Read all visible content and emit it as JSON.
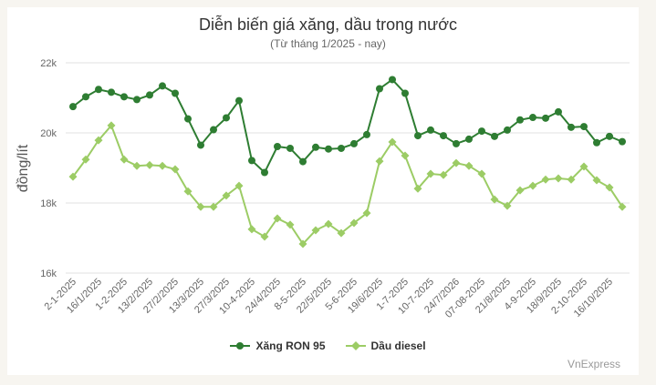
{
  "chart_data": {
    "type": "line",
    "title": "Diễn biến giá xăng, dầu trong nước",
    "subtitle": "(Từ tháng 1/2025 - nay)",
    "xlabel": "",
    "ylabel": "đồng/lít",
    "ylim": [
      16000,
      22000
    ],
    "yticks": [
      16000,
      18000,
      20000,
      22000
    ],
    "ytick_labels": [
      "16k",
      "18k",
      "20k",
      "22k"
    ],
    "grid": true,
    "legend_position": "bottom",
    "xtick_labels": [
      "2-1-2025",
      "16/1/2025",
      "1-2-2025",
      "13/2/2025",
      "27/2/2025",
      "13/3/2025",
      "27/3/2025",
      "10-4-2025",
      "24/4/2025",
      "8-5-2025",
      "22/5/2025",
      "5-6-2025",
      "19/6/2025",
      "1-7-2025",
      "10-7-2025",
      "24/7/2026",
      "07-08-2025",
      "21/8/2025",
      "4-9-2025",
      "18/9/2025",
      "2-10-2025",
      "16/10/2025"
    ],
    "point_count": 44,
    "series": [
      {
        "name": "Xăng RON 95",
        "color": "#2e7d32",
        "marker": "circle",
        "values": [
          20750,
          21030,
          21240,
          21160,
          21030,
          20950,
          21080,
          21340,
          21130,
          20400,
          19650,
          20090,
          20430,
          20920,
          19210,
          18870,
          19610,
          19560,
          19180,
          19590,
          19540,
          19560,
          19690,
          19950,
          21260,
          21520,
          21130,
          19920,
          20080,
          19920,
          19690,
          19820,
          20050,
          19900,
          20080,
          20370,
          20440,
          20420,
          20600,
          20160,
          20180,
          19720,
          19900,
          19750
        ]
      },
      {
        "name": "Dầu diesel",
        "color": "#9ccc65",
        "marker": "diamond",
        "values": [
          18750,
          19240,
          19790,
          20210,
          19240,
          19060,
          19080,
          19060,
          18960,
          18330,
          17890,
          17890,
          18210,
          18490,
          17250,
          17040,
          17560,
          17380,
          16830,
          17220,
          17400,
          17140,
          17430,
          17710,
          19190,
          19740,
          19350,
          18410,
          18830,
          18800,
          19140,
          19060,
          18830,
          18100,
          17920,
          18360,
          18490,
          18670,
          18700,
          18670,
          19040,
          18650,
          18440,
          17890
        ]
      }
    ]
  },
  "legend": {
    "items": [
      {
        "label": "Xăng RON 95",
        "color": "#2e7d32"
      },
      {
        "label": "Dầu diesel",
        "color": "#9ccc65"
      }
    ]
  },
  "credit": "VnExpress"
}
